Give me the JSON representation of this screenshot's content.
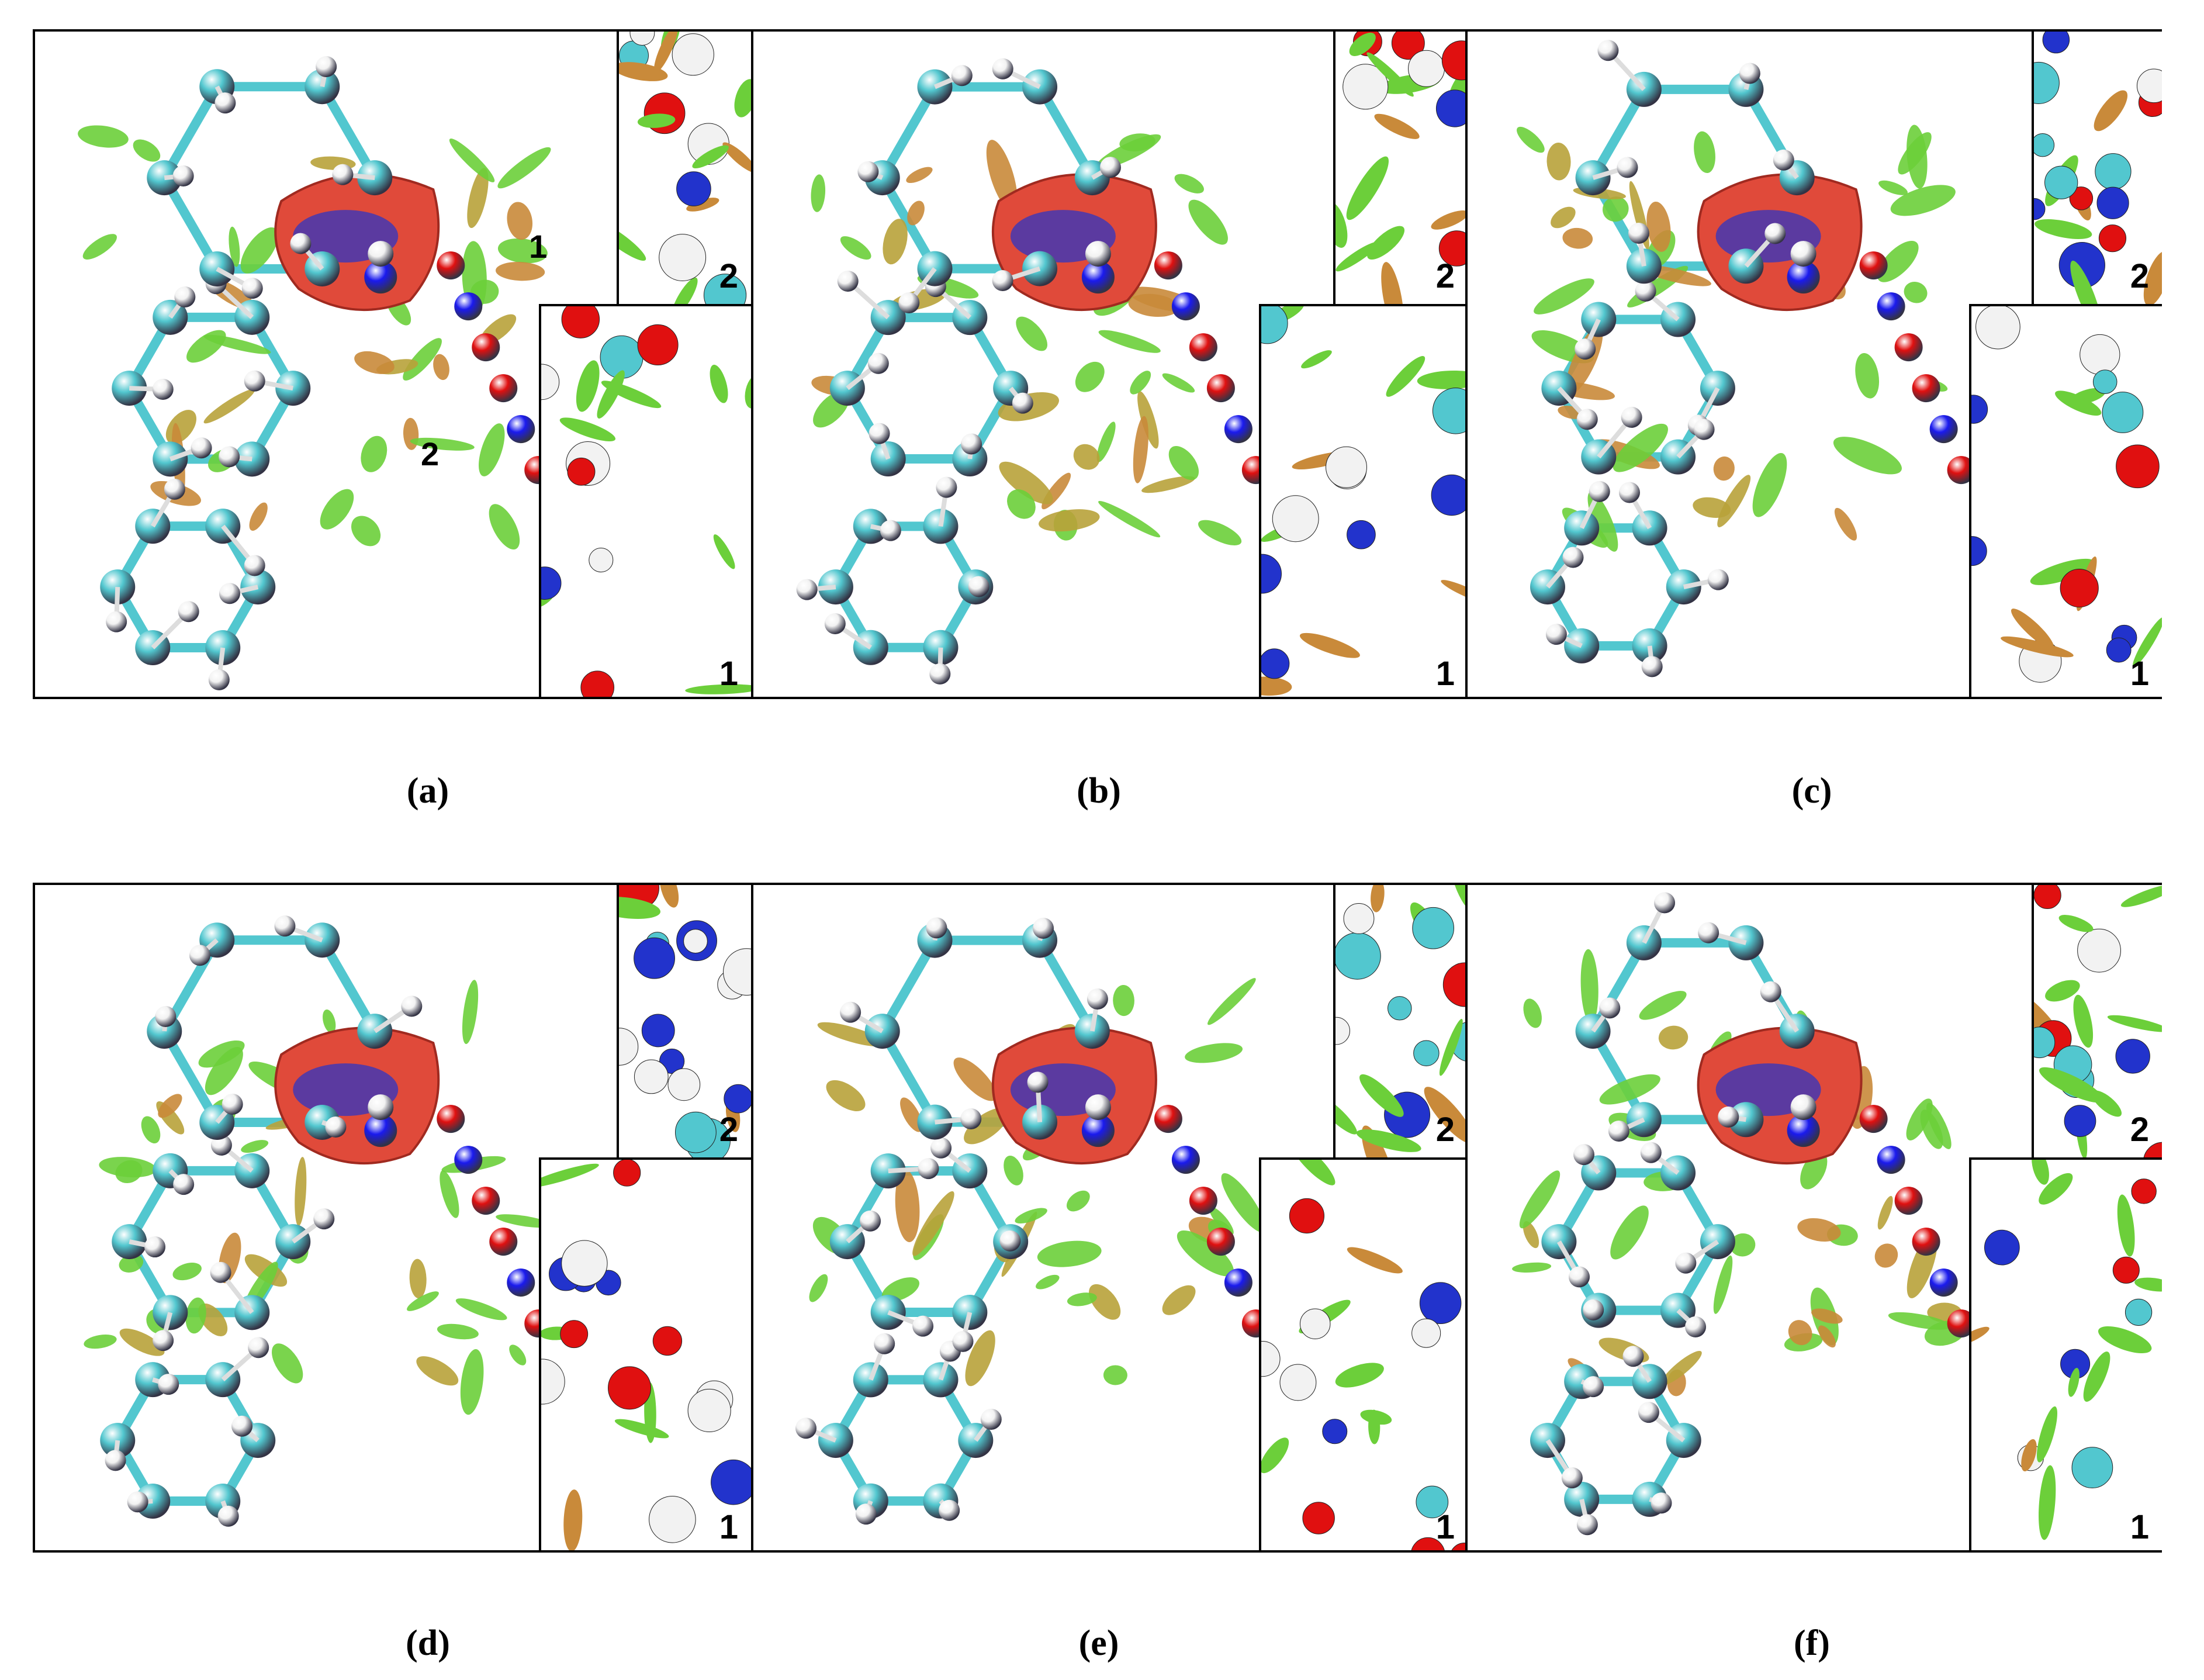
{
  "panels": [
    {
      "caption": "(a)",
      "main_labels": [
        "1",
        "2"
      ],
      "inset_top_label": "2",
      "inset_bottom_label": "1"
    },
    {
      "caption": "(b)",
      "main_labels": [],
      "inset_top_label": "2",
      "inset_bottom_label": "1"
    },
    {
      "caption": "(c)",
      "main_labels": [],
      "inset_top_label": "2",
      "inset_bottom_label": "1"
    },
    {
      "caption": "(d)",
      "main_labels": [],
      "inset_top_label": "2",
      "inset_bottom_label": "1"
    },
    {
      "caption": "(e)",
      "main_labels": [],
      "inset_top_label": "2",
      "inset_bottom_label": "1"
    },
    {
      "caption": "(f)",
      "main_labels": [],
      "inset_top_label": "2",
      "inset_bottom_label": "1"
    }
  ],
  "colors": {
    "carbon": "#52c7cf",
    "hydrogen": "#f2f2f2",
    "oxygen": "#e01010",
    "nitrogen": "#1a1aee",
    "isosurface_repulsive": "#e04a3a",
    "isosurface_vdw": "#6ccf3a",
    "isosurface_attractive": "#2233cc"
  }
}
